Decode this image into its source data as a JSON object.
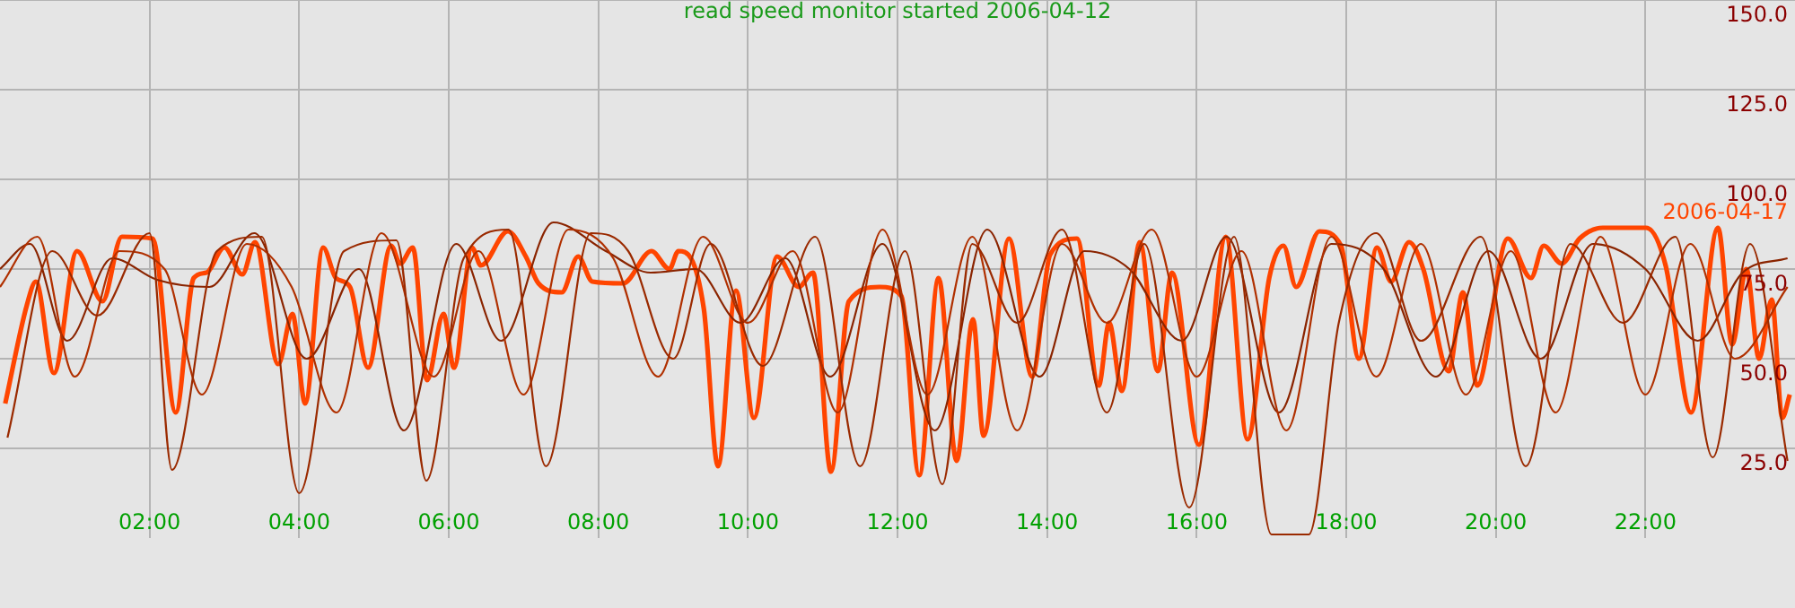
{
  "chart_data": {
    "type": "line",
    "title": "read speed monitor started 2006-04-12",
    "xlim": [
      0,
      24
    ],
    "ylim": [
      0,
      150
    ],
    "xticks": [
      {
        "value": 2,
        "label": "02:00"
      },
      {
        "value": 4,
        "label": "04:00"
      },
      {
        "value": 6,
        "label": "06:00"
      },
      {
        "value": 8,
        "label": "08:00"
      },
      {
        "value": 10,
        "label": "10:00"
      },
      {
        "value": 12,
        "label": "12:00"
      },
      {
        "value": 14,
        "label": "14:00"
      },
      {
        "value": 16,
        "label": "16:00"
      },
      {
        "value": 18,
        "label": "18:00"
      },
      {
        "value": 20,
        "label": "20:00"
      },
      {
        "value": 22,
        "label": "22:00"
      }
    ],
    "yticks": [
      {
        "value": 25,
        "label": "25.0"
      },
      {
        "value": 50,
        "label": "50.0"
      },
      {
        "value": 75,
        "label": "75.0"
      },
      {
        "value": 100,
        "label": "100.0"
      },
      {
        "value": 125,
        "label": "125.0"
      },
      {
        "value": 150,
        "label": "150.0"
      }
    ],
    "grid": true,
    "legend": false,
    "marker": "none",
    "line_style": "solid",
    "series": [
      {
        "color": "#9a2a00",
        "x": [
          0.1,
          0.7,
          1.3,
          2.0,
          2.3,
          2.9,
          3.5,
          4.0,
          4.6,
          5.3,
          5.7,
          6.2,
          6.8,
          7.3,
          7.9,
          8.4,
          9.0,
          9.5,
          10.2,
          10.9,
          11.5,
          12.1,
          12.6,
          13.0,
          13.6,
          14.2,
          14.8,
          15.3,
          15.9,
          16.5,
          17.0,
          17.5,
          17.9,
          18.4,
          19.0,
          19.8,
          20.4,
          21.0,
          21.7,
          22.4,
          22.9,
          23.4,
          23.9
        ],
        "values": [
          28,
          80,
          62,
          85,
          19,
          80,
          84,
          12.5,
          80,
          83,
          16,
          78,
          86,
          20,
          85,
          80,
          50,
          82,
          48,
          84,
          20,
          80,
          15,
          82,
          60,
          86,
          35,
          82,
          8.5,
          84,
          1,
          1,
          60,
          85,
          55,
          84,
          20,
          82,
          60,
          84,
          22.5,
          82,
          21.5
        ]
      },
      {
        "color": "#b03000",
        "x": [
          0.0,
          0.5,
          1.0,
          1.6,
          2.2,
          2.7,
          3.3,
          3.9,
          4.5,
          5.1,
          5.8,
          6.4,
          7.0,
          7.6,
          8.2,
          8.8,
          9.4,
          10.0,
          10.6,
          11.2,
          11.8,
          12.4,
          13.0,
          13.6,
          14.2,
          14.8,
          15.4,
          16.0,
          16.6,
          17.2,
          17.8,
          18.4,
          19.0,
          19.6,
          20.2,
          20.8,
          21.4,
          22.0,
          22.6,
          23.2,
          23.9
        ],
        "values": [
          70,
          84,
          45,
          80,
          75,
          40,
          82,
          70,
          35,
          85,
          45,
          80,
          40,
          86,
          78,
          45,
          84,
          60,
          80,
          35,
          86,
          40,
          84,
          30,
          82,
          60,
          86,
          45,
          80,
          30,
          84,
          45,
          82,
          40,
          80,
          35,
          84,
          40,
          82,
          50,
          70
        ]
      },
      {
        "color": "#8a2400",
        "x": [
          0.0,
          0.4,
          0.9,
          1.5,
          2.1,
          2.8,
          3.4,
          4.1,
          4.8,
          5.4,
          6.1,
          6.7,
          7.4,
          8.1,
          8.7,
          9.3,
          9.9,
          10.5,
          11.1,
          11.8,
          12.5,
          13.2,
          13.9,
          14.5,
          15.1,
          15.8,
          16.4,
          17.1,
          17.8,
          18.5,
          19.2,
          19.9,
          20.6,
          21.3,
          22.0,
          22.7,
          23.3,
          23.9
        ],
        "values": [
          75,
          82,
          55,
          78,
          72,
          70,
          85,
          50,
          75,
          30,
          82,
          55,
          88,
          80,
          74,
          75,
          60,
          78,
          45,
          82,
          30,
          86,
          45,
          80,
          75,
          55,
          84,
          35,
          82,
          75,
          45,
          80,
          50,
          82,
          75,
          55,
          74,
          78
        ]
      },
      {
        "name": "2006-04-17",
        "color": "#ff4500",
        "x": [
          0.07,
          0.36,
          0.48,
          0.72,
          1.03,
          1.37,
          1.63,
          2.04,
          2.35,
          2.59,
          2.76,
          3.0,
          3.24,
          3.41,
          3.72,
          3.91,
          4.08,
          4.32,
          4.49,
          4.68,
          4.92,
          5.23,
          5.35,
          5.52,
          5.71,
          5.93,
          6.07,
          6.31,
          6.43,
          6.79,
          7.03,
          7.2,
          7.51,
          7.73,
          7.92,
          8.33,
          8.71,
          8.95,
          9.07,
          9.41,
          9.6,
          9.84,
          10.08,
          10.39,
          10.68,
          10.87,
          11.11,
          11.35,
          11.76,
          12.05,
          12.29,
          12.55,
          12.79,
          13.01,
          13.15,
          13.49,
          13.8,
          14.04,
          14.4,
          14.69,
          14.83,
          15.0,
          15.24,
          15.48,
          15.67,
          16.03,
          16.39,
          16.68,
          16.97,
          17.16,
          17.33,
          17.64,
          17.93,
          18.17,
          18.41,
          18.6,
          18.84,
          19.03,
          19.37,
          19.56,
          19.75,
          20.16,
          20.47,
          20.64,
          20.88,
          21.12,
          21.43,
          22.01,
          22.27,
          22.61,
          22.97,
          23.16,
          23.35,
          23.52,
          23.69,
          23.83,
          23.93
        ],
        "values": [
          37.5,
          65,
          71.5,
          46,
          80,
          66,
          84,
          83.5,
          35,
          72.5,
          74,
          81,
          73.5,
          82.5,
          48.5,
          62.5,
          37.5,
          81,
          72.5,
          70,
          47.5,
          81.5,
          76.5,
          81,
          44,
          62.5,
          47.5,
          81,
          76,
          85.5,
          78.5,
          71,
          68.5,
          78.5,
          71.5,
          71,
          80,
          75,
          80,
          64,
          20,
          69,
          33.5,
          78.5,
          70,
          74,
          18.5,
          66,
          70,
          67.5,
          17.5,
          72.5,
          21.5,
          61,
          28.5,
          83.5,
          45,
          79,
          83.5,
          42.5,
          60,
          41,
          82.5,
          46.5,
          74,
          26,
          84,
          27.5,
          72.5,
          81.5,
          70,
          85.5,
          81.5,
          50,
          81,
          71.5,
          82.5,
          75,
          46.5,
          68.5,
          42.5,
          83.5,
          72.5,
          81.5,
          76.5,
          83.5,
          86.5,
          86.5,
          76,
          35,
          86.5,
          54,
          75,
          50,
          66.5,
          33.5,
          40
        ]
      }
    ]
  }
}
